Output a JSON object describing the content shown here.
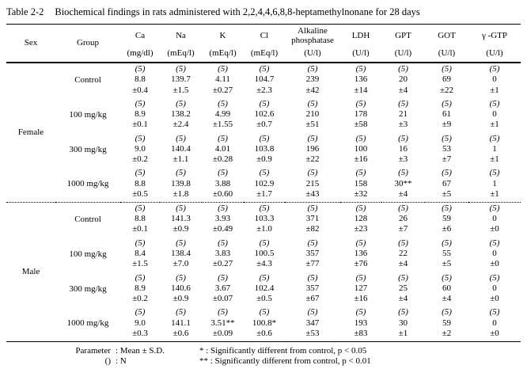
{
  "title": {
    "label": "Table 2-2",
    "text": "Biochemical findings in rats administered with 2,2,4,4,6,8,8-heptamethylnonane for 28 days"
  },
  "table": {
    "col_headers": [
      {
        "name": "Sex"
      },
      {
        "name": "Group"
      },
      {
        "name": "Ca",
        "unit": "(mg/dl)"
      },
      {
        "name": "Na",
        "unit": "(mEq/l)"
      },
      {
        "name": "K",
        "unit": "(mEq/l)"
      },
      {
        "name": "Cl",
        "unit": "(mEq/l)"
      },
      {
        "name": "Alkaline phosphatase",
        "unit": "(U/l)"
      },
      {
        "name": "LDH",
        "unit": "(U/l)"
      },
      {
        "name": "GPT",
        "unit": "(U/l)"
      },
      {
        "name": "GOT",
        "unit": "(U/l)"
      },
      {
        "name": "γ -GTP",
        "unit": "(U/l)"
      }
    ],
    "sections": [
      {
        "sex": "Female",
        "rows": [
          {
            "group": "Control",
            "cells": [
              [
                "(5)",
                "8.8",
                "±0.4"
              ],
              [
                "(5)",
                "139.7",
                "±1.5"
              ],
              [
                "(5)",
                "4.11",
                "±0.27"
              ],
              [
                "(5)",
                "104.7",
                "±2.3"
              ],
              [
                "(5)",
                "239",
                "±42"
              ],
              [
                "(5)",
                "136",
                "±14"
              ],
              [
                "(5)",
                "20",
                "±4"
              ],
              [
                "(5)",
                "69",
                "±22"
              ],
              [
                "(5)",
                "0",
                "±1"
              ]
            ]
          },
          {
            "group": "100 mg/kg",
            "cells": [
              [
                "(5)",
                "8.9",
                "±0.1"
              ],
              [
                "(5)",
                "138.2",
                "±2.4"
              ],
              [
                "(5)",
                "4.99",
                "±1.55"
              ],
              [
                "(5)",
                "102.6",
                "±0.7"
              ],
              [
                "(5)",
                "210",
                "±51"
              ],
              [
                "(5)",
                "178",
                "±58"
              ],
              [
                "(5)",
                "21",
                "±3"
              ],
              [
                "(5)",
                "61",
                "±9"
              ],
              [
                "(5)",
                "0",
                "±1"
              ]
            ]
          },
          {
            "group": "300 mg/kg",
            "cells": [
              [
                "(5)",
                "9.0",
                "±0.2"
              ],
              [
                "(5)",
                "140.4",
                "±1.1"
              ],
              [
                "(5)",
                "4.01",
                "±0.28"
              ],
              [
                "(5)",
                "103.8",
                "±0.9"
              ],
              [
                "(5)",
                "196",
                "±22"
              ],
              [
                "(5)",
                "100",
                "±16"
              ],
              [
                "(5)",
                "16",
                "±3"
              ],
              [
                "(5)",
                "53",
                "±7"
              ],
              [
                "(5)",
                "1",
                "±1"
              ]
            ]
          },
          {
            "group": "1000 mg/kg",
            "cells": [
              [
                "(5)",
                "8.8",
                "±0.5"
              ],
              [
                "(5)",
                "139.8",
                "±1.8"
              ],
              [
                "(5)",
                "3.88",
                "±0.60"
              ],
              [
                "(5)",
                "102.9",
                "±1.7"
              ],
              [
                "(5)",
                "215",
                "±43"
              ],
              [
                "(5)",
                "158",
                "±32"
              ],
              [
                "(5)",
                "30**",
                "±4"
              ],
              [
                "(5)",
                "67",
                "±5"
              ],
              [
                "(5)",
                "1",
                "±1"
              ]
            ]
          }
        ]
      },
      {
        "sex": "Male",
        "rows": [
          {
            "group": "Control",
            "cells": [
              [
                "(5)",
                "8.8",
                "±0.1"
              ],
              [
                "(5)",
                "141.3",
                "±0.9"
              ],
              [
                "(5)",
                "3.93",
                "±0.49"
              ],
              [
                "(5)",
                "103.3",
                "±1.0"
              ],
              [
                "(5)",
                "371",
                "±82"
              ],
              [
                "(5)",
                "128",
                "±23"
              ],
              [
                "(5)",
                "26",
                "±7"
              ],
              [
                "(5)",
                "59",
                "±6"
              ],
              [
                "(5)",
                "0",
                "±0"
              ]
            ]
          },
          {
            "group": "100 mg/kg",
            "cells": [
              [
                "(5)",
                "8.4",
                "±1.5"
              ],
              [
                "(5)",
                "138.4",
                "±7.0"
              ],
              [
                "(5)",
                "3.83",
                "±0.27"
              ],
              [
                "(5)",
                "100.5",
                "±4.3"
              ],
              [
                "(5)",
                "357",
                "±77"
              ],
              [
                "(5)",
                "136",
                "±76"
              ],
              [
                "(5)",
                "22",
                "±4"
              ],
              [
                "(5)",
                "55",
                "±5"
              ],
              [
                "(5)",
                "0",
                "±0"
              ]
            ]
          },
          {
            "group": "300 mg/kg",
            "cells": [
              [
                "(5)",
                "8.9",
                "±0.2"
              ],
              [
                "(5)",
                "140.6",
                "±0.9"
              ],
              [
                "(5)",
                "3.67",
                "±0.07"
              ],
              [
                "(5)",
                "102.4",
                "±0.5"
              ],
              [
                "(5)",
                "357",
                "±67"
              ],
              [
                "(5)",
                "127",
                "±16"
              ],
              [
                "(5)",
                "25",
                "±4"
              ],
              [
                "(5)",
                "60",
                "±4"
              ],
              [
                "(5)",
                "0",
                "±0"
              ]
            ]
          },
          {
            "group": "1000 mg/kg",
            "cells": [
              [
                "(5)",
                "9.0",
                "±0.3"
              ],
              [
                "(5)",
                "141.1",
                "±0.6"
              ],
              [
                "(5)",
                "3.51**",
                "±0.09"
              ],
              [
                "(5)",
                "100.8*",
                "±0.6"
              ],
              [
                "(5)",
                "347",
                "±53"
              ],
              [
                "(5)",
                "193",
                "±83"
              ],
              [
                "(5)",
                "30",
                "±1"
              ],
              [
                "(5)",
                "59",
                "±2"
              ],
              [
                "(5)",
                "0",
                "±0"
              ]
            ]
          }
        ]
      }
    ]
  },
  "footer": {
    "param_label": "Parameter",
    "param_value": ": Mean ± S.D.",
    "n_label": "()",
    "n_value": ": N",
    "note_p05": "*  : Significantly different from control, p < 0.05",
    "note_p01": "** : Significantly different from control, p < 0.01"
  }
}
